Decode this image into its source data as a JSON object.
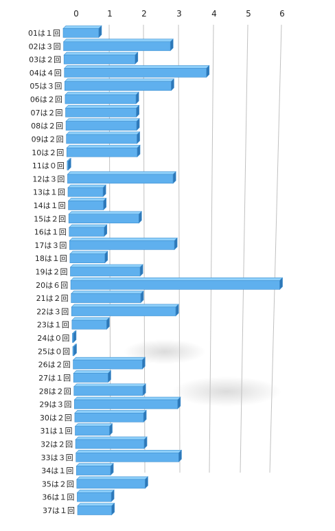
{
  "chart_data": {
    "type": "bar",
    "orientation": "horizontal",
    "style": "3d-perspective",
    "categories": [
      "01は１回",
      "02は３回",
      "03は２回",
      "04は４回",
      "05は３回",
      "06は２回",
      "07は２回",
      "08は２回",
      "09は２回",
      "10は２回",
      "11は０回",
      "12は３回",
      "13は１回",
      "14は１回",
      "15は２回",
      "16は１回",
      "17は３回",
      "18は１回",
      "19は２回",
      "20は６回",
      "21は２回",
      "22は３回",
      "23は１回",
      "24は０回",
      "25は０回",
      "26は２回",
      "27は１回",
      "28は２回",
      "29は３回",
      "30は２回",
      "31は１回",
      "32は２回",
      "33は３回",
      "34は１回",
      "35は２回",
      "36は１回",
      "37は１回"
    ],
    "values": [
      1,
      3,
      2,
      4,
      3,
      2,
      2,
      2,
      2,
      2,
      0,
      3,
      1,
      1,
      2,
      1,
      3,
      1,
      2,
      6,
      2,
      3,
      1,
      0,
      0,
      2,
      1,
      2,
      3,
      2,
      1,
      2,
      3,
      1,
      2,
      1,
      1
    ],
    "x_ticks": [
      "0",
      "1",
      "2",
      "3",
      "4",
      "5",
      "6"
    ],
    "xlim": [
      0,
      6
    ],
    "grid": true,
    "legend": "none",
    "colors": {
      "bar_face": "#5fb0ee",
      "bar_top": "#8fd0fa",
      "bar_side": "#2e78b8",
      "bar_edge": "#3d8fd0",
      "grid": "#c0c0c0"
    }
  }
}
